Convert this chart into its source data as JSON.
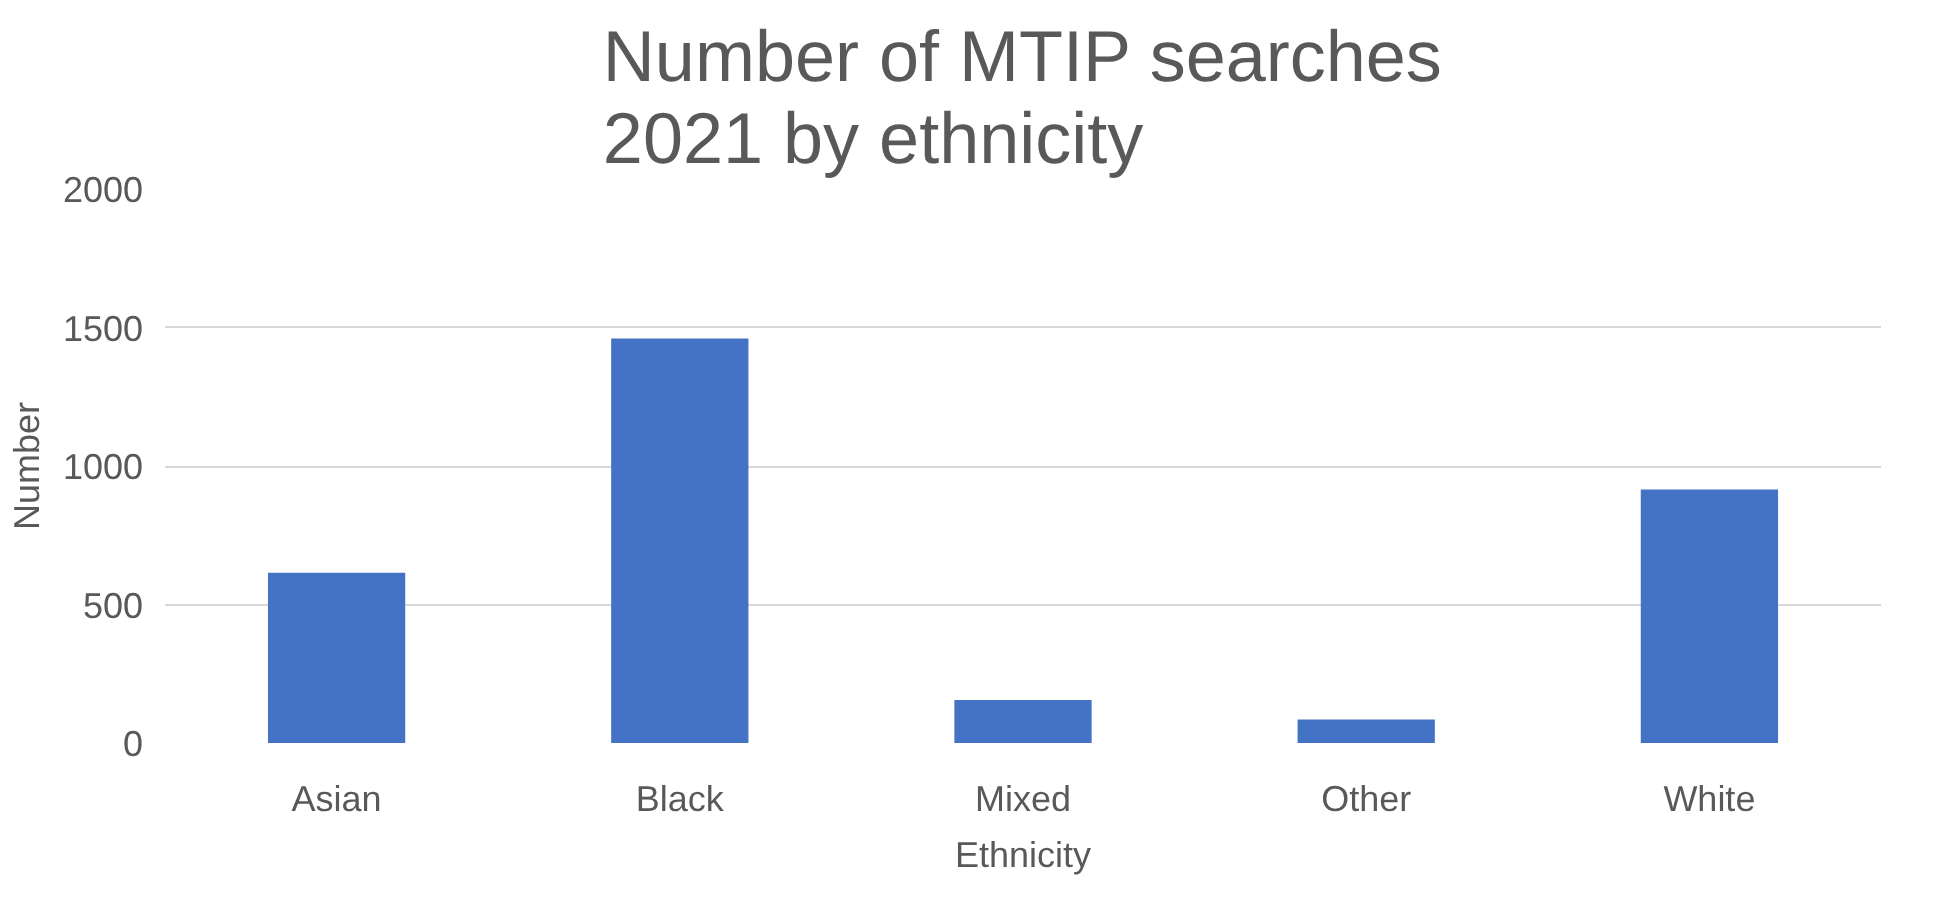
{
  "chart_data": {
    "type": "bar",
    "title": "Number of MTIP searches 2021  by ethnicity",
    "xlabel": "Ethnicity",
    "ylabel": "Number",
    "categories": [
      "Asian",
      "Black",
      "Mixed",
      "Other",
      "White"
    ],
    "values": [
      615,
      1460,
      155,
      85,
      915
    ],
    "color": "#4472c4",
    "ylim": [
      0,
      2000
    ],
    "yticks": [
      0,
      500,
      1000,
      1500,
      2000
    ],
    "grid": "y"
  }
}
